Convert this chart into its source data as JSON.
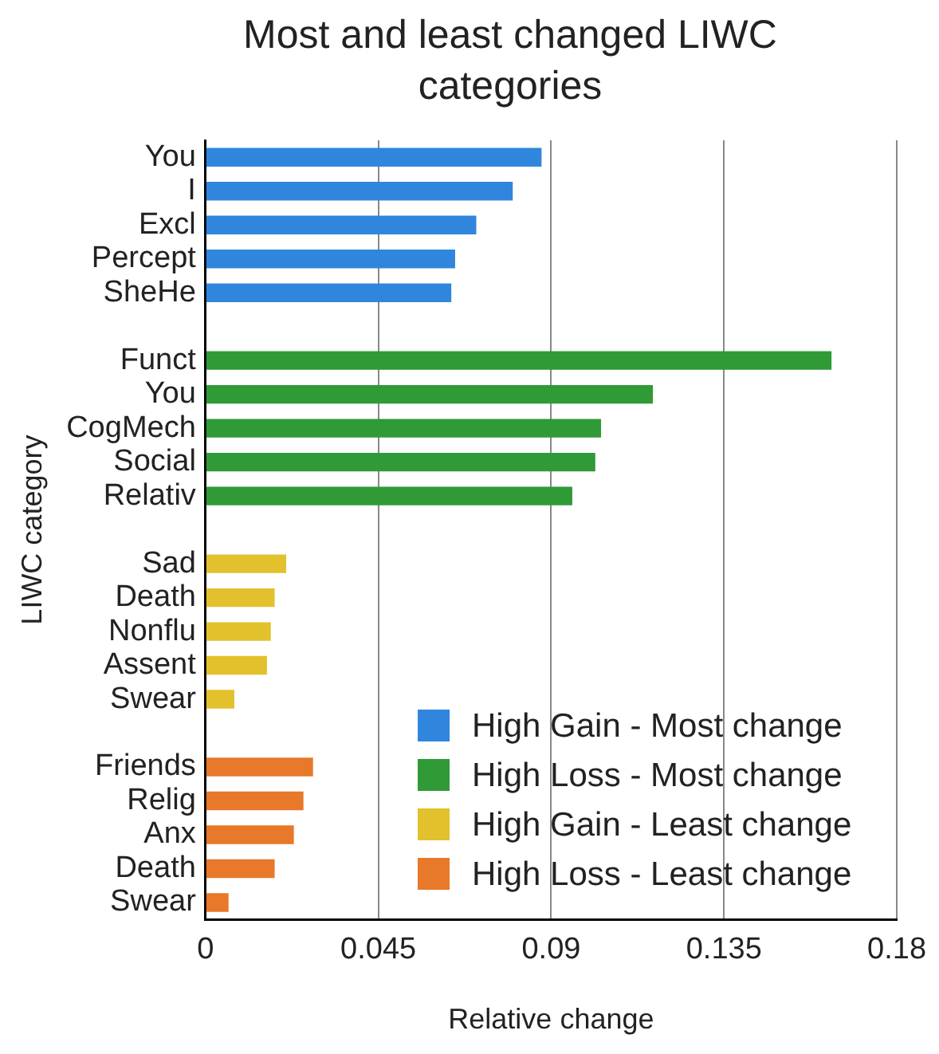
{
  "chart_data": {
    "type": "bar",
    "orientation": "horizontal",
    "title": "Most and least changed LIWC categories",
    "xlabel": "Relative change",
    "ylabel": "LIWC category",
    "categories": [
      "You",
      "I",
      "Excl",
      "Percept",
      "SheHe",
      null,
      "Funct",
      "You",
      "CogMech",
      "Social",
      "Relativ",
      null,
      "Sad",
      "Death",
      "Nonflu",
      "Assent",
      "Swear",
      null,
      "Friends",
      "Relig",
      "Anx",
      "Death",
      "Swear"
    ],
    "series": [
      {
        "name": "High Gain - Most change",
        "color": "#2f86dc",
        "values": [
          0.0875,
          0.08,
          0.0705,
          0.065,
          0.064,
          null,
          null,
          null,
          null,
          null,
          null,
          null,
          null,
          null,
          null,
          null,
          null,
          null,
          null,
          null,
          null,
          null,
          null
        ]
      },
      {
        "name": "High Loss - Most change",
        "color": "#2f9a36",
        "values": [
          null,
          null,
          null,
          null,
          null,
          null,
          0.163,
          0.1165,
          0.103,
          0.1015,
          0.0955,
          null,
          null,
          null,
          null,
          null,
          null,
          null,
          null,
          null,
          null,
          null,
          null
        ]
      },
      {
        "name": "High Gain - Least change",
        "color": "#e2c12c",
        "values": [
          null,
          null,
          null,
          null,
          null,
          null,
          null,
          null,
          null,
          null,
          null,
          null,
          0.021,
          0.018,
          0.017,
          0.016,
          0.0075,
          null,
          null,
          null,
          null,
          null,
          null
        ]
      },
      {
        "name": "High Loss - Least change",
        "color": "#e8782a",
        "values": [
          null,
          null,
          null,
          null,
          null,
          null,
          null,
          null,
          null,
          null,
          null,
          null,
          null,
          null,
          null,
          null,
          null,
          null,
          0.028,
          0.0255,
          0.023,
          0.018,
          0.006
        ]
      }
    ],
    "xlim": [
      0,
      0.18
    ],
    "xticks": [
      0,
      0.045,
      0.09,
      0.135,
      0.18
    ],
    "grid": "x",
    "legend": "bottom right"
  }
}
